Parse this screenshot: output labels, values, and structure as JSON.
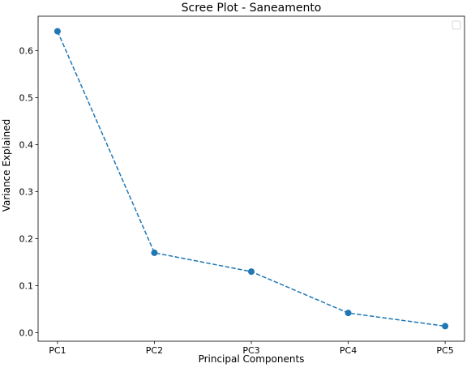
{
  "chart_data": {
    "type": "line",
    "title": "Scree Plot - Saneamento",
    "xlabel": "Principal Components",
    "ylabel": "Variance Explained",
    "categories": [
      "PC1",
      "PC2",
      "PC3",
      "PC4",
      "PC5"
    ],
    "series": [
      {
        "values": [
          0.641,
          0.17,
          0.13,
          0.042,
          0.014
        ],
        "color": "#1f77b4",
        "line_style": "dashed",
        "marker": "circle"
      }
    ],
    "ylim": [
      -0.018,
      0.673
    ],
    "yticks": [
      0.0,
      0.1,
      0.2,
      0.3,
      0.4,
      0.5,
      0.6
    ],
    "ytick_labels": [
      "0.0",
      "0.1",
      "0.2",
      "0.3",
      "0.4",
      "0.5",
      "0.6"
    ],
    "grid": false,
    "legend": {
      "position": "top-right",
      "entries": []
    }
  }
}
